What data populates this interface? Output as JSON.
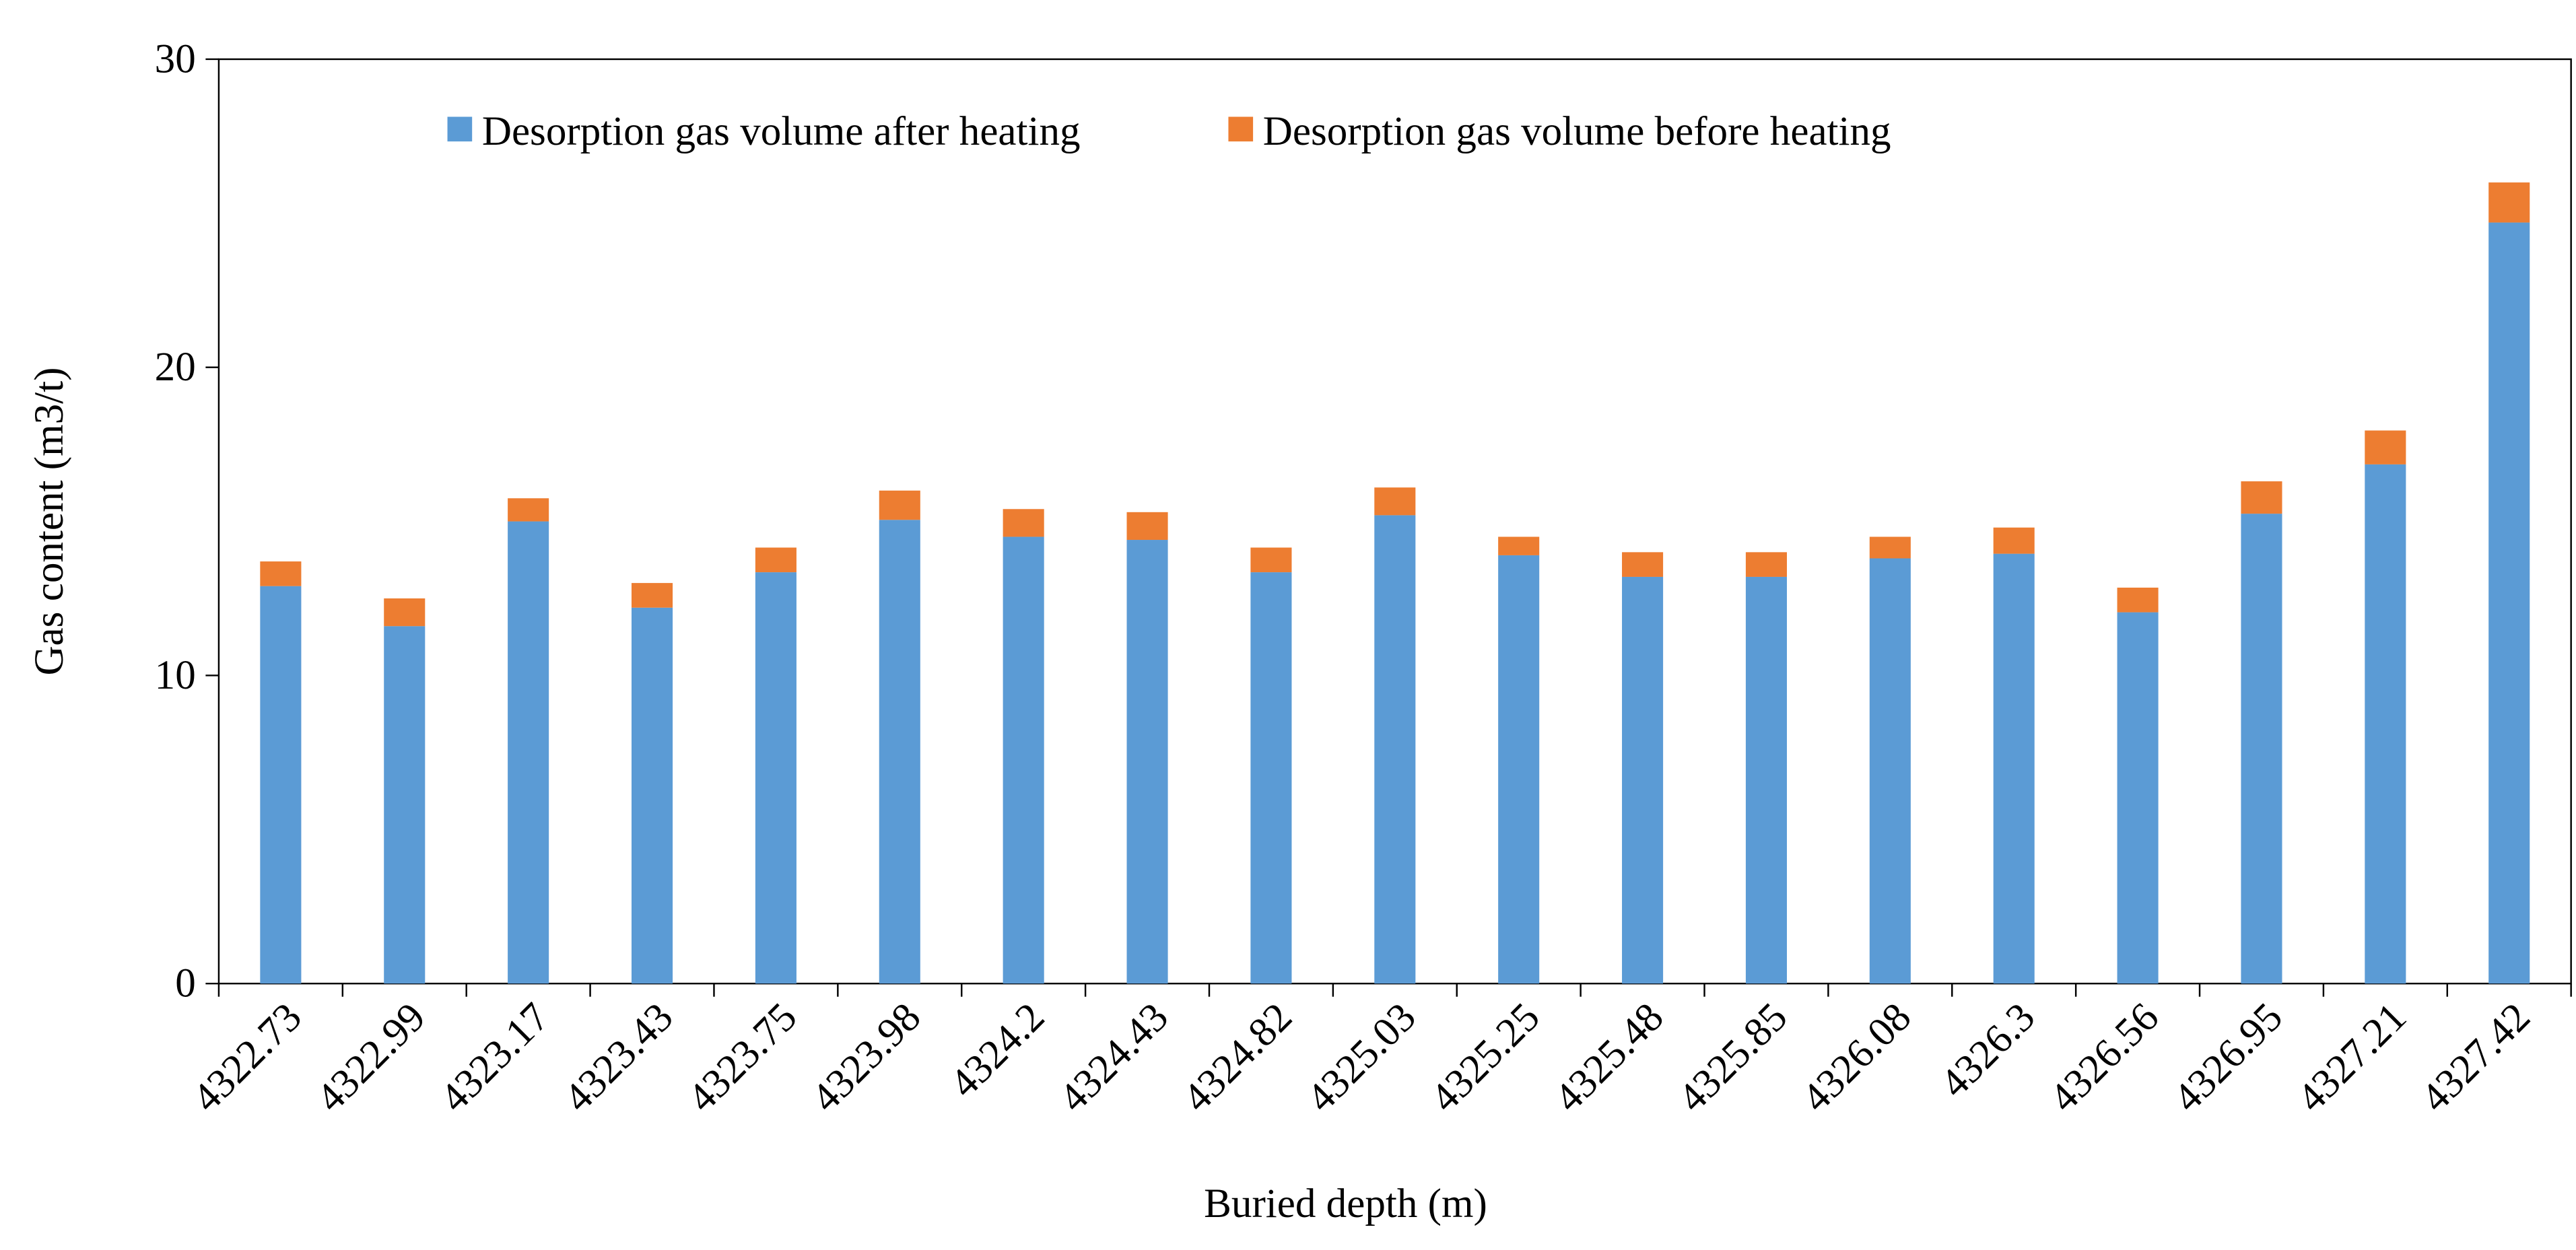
{
  "chart_data": {
    "type": "stacked_bar",
    "x_label": "Buried depth (m)",
    "y_label": "Gas content (m3/t)",
    "categories": [
      "4322.73",
      "4322.99",
      "4323.17",
      "4323.43",
      "4323.75",
      "4323.98",
      "4324.2",
      "4324.43",
      "4324.82",
      "4325.03",
      "4325.25",
      "4325.48",
      "4325.85",
      "4326.08",
      "4326.3",
      "4326.56",
      "4326.95",
      "4327.21",
      "4327.42"
    ],
    "series": [
      {
        "name": "Desorption gas volume after heating",
        "color": "#5b9bd5",
        "values": [
          12.9,
          11.6,
          15.0,
          12.2,
          13.35,
          15.05,
          14.5,
          14.4,
          13.35,
          15.2,
          13.9,
          13.2,
          13.2,
          13.8,
          13.95,
          12.05,
          15.25,
          16.85,
          24.7
        ]
      },
      {
        "name": "Desorption gas volume before heating",
        "color": "#ed7d31",
        "values": [
          0.8,
          0.9,
          0.75,
          0.8,
          0.8,
          0.95,
          0.9,
          0.9,
          0.8,
          0.9,
          0.6,
          0.8,
          0.8,
          0.7,
          0.85,
          0.8,
          1.05,
          1.1,
          1.3
        ]
      }
    ],
    "ylim": [
      0,
      30
    ],
    "yticks": [
      0,
      10,
      20,
      30
    ],
    "grid": false,
    "legend": "top"
  }
}
